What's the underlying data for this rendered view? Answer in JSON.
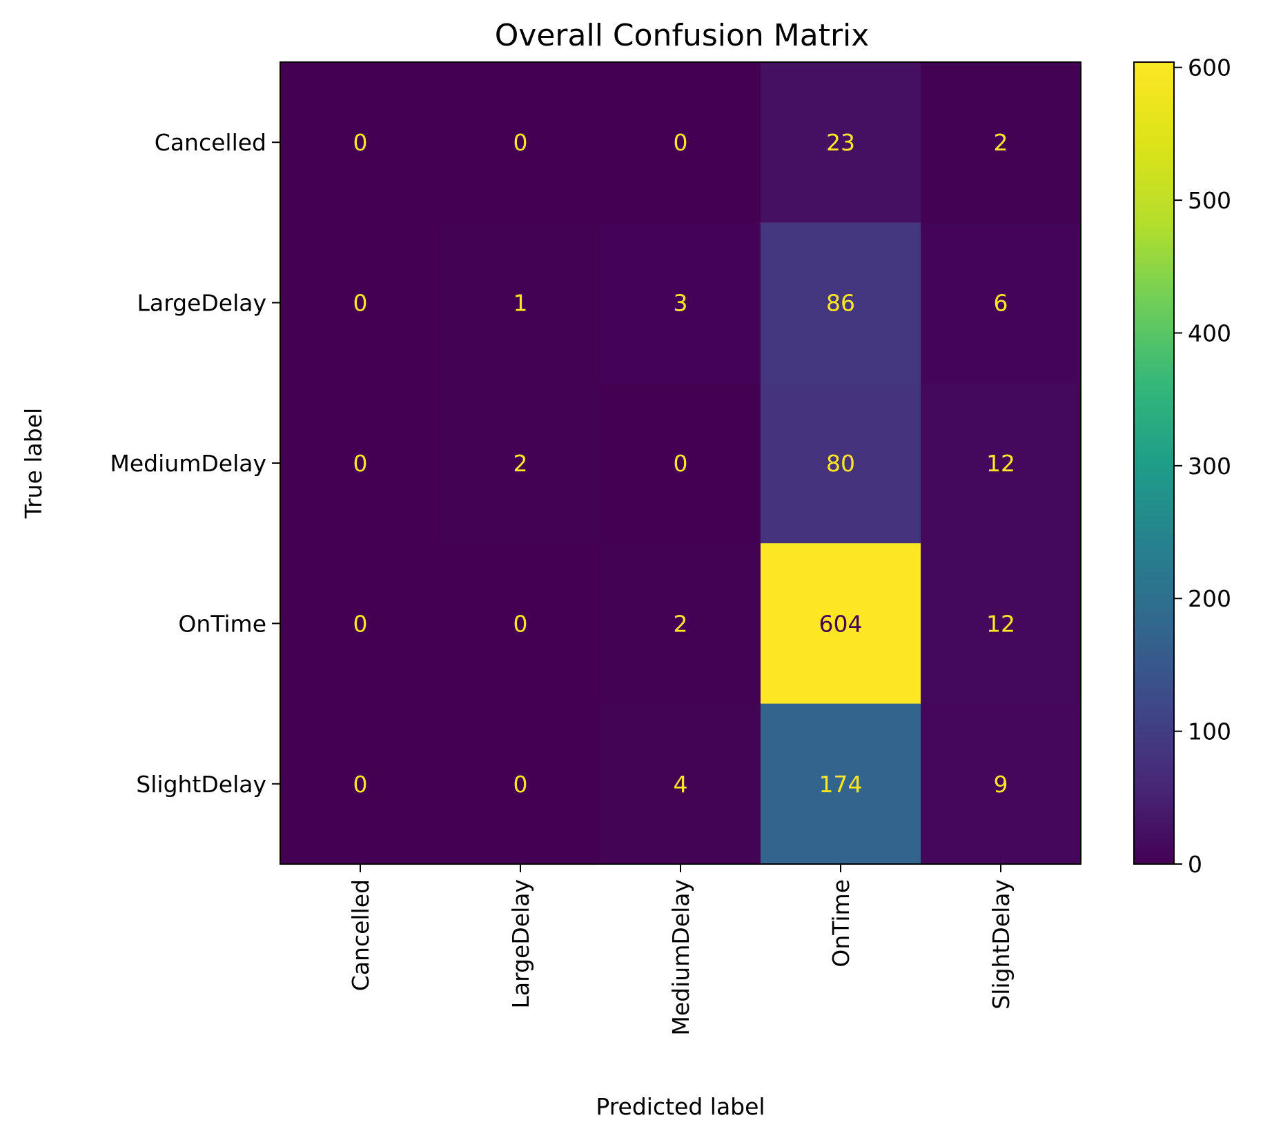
{
  "chart_data": {
    "type": "heatmap",
    "title": "Overall Confusion Matrix",
    "xlabel": "Predicted label",
    "ylabel": "True label",
    "x_categories": [
      "Cancelled",
      "LargeDelay",
      "MediumDelay",
      "OnTime",
      "SlightDelay"
    ],
    "y_categories": [
      "Cancelled",
      "LargeDelay",
      "MediumDelay",
      "OnTime",
      "SlightDelay"
    ],
    "values": [
      [
        0,
        0,
        0,
        23,
        2
      ],
      [
        0,
        1,
        3,
        86,
        6
      ],
      [
        0,
        2,
        0,
        80,
        12
      ],
      [
        0,
        0,
        2,
        604,
        12
      ],
      [
        0,
        0,
        4,
        174,
        9
      ]
    ],
    "colormap": "viridis",
    "color_range": [
      0,
      604
    ],
    "colorbar_ticks": [
      0,
      100,
      200,
      300,
      400,
      500,
      600
    ],
    "annotation_colors": {
      "light": "#fde725",
      "dark": "#440154"
    },
    "grid": false,
    "legend": "colorbar-right"
  }
}
